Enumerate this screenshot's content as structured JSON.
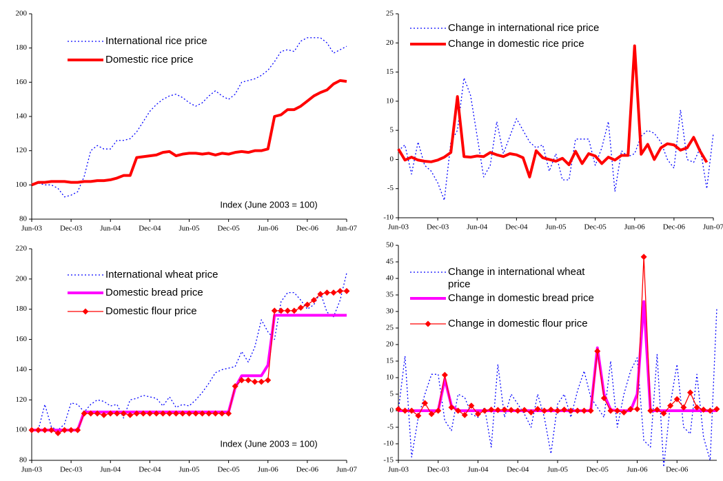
{
  "chart_data": [
    {
      "type": "line",
      "categories": [
        "Jun-03",
        null,
        null,
        null,
        null,
        null,
        "Dec-03",
        null,
        null,
        null,
        null,
        null,
        "Jun-04",
        null,
        null,
        null,
        null,
        null,
        "Dec-04",
        null,
        null,
        null,
        null,
        null,
        "Jun-05",
        null,
        null,
        null,
        null,
        null,
        "Dec-05",
        null,
        null,
        null,
        null,
        null,
        "Jun-06",
        null,
        null,
        null,
        null,
        null,
        "Dec-06",
        null,
        null,
        null,
        null,
        null,
        "Jun-07"
      ],
      "series": [
        {
          "name": "International rice price",
          "color": "#0000ff",
          "style": "dotted",
          "values": [
            100,
            101,
            100,
            100,
            98,
            93,
            94,
            96,
            105,
            120,
            123,
            121,
            121,
            126,
            126,
            127,
            131,
            137,
            143,
            147,
            150,
            152,
            153,
            151,
            148,
            146,
            148,
            152,
            155,
            152,
            150,
            153,
            160,
            161,
            162,
            164,
            167,
            172,
            178,
            179,
            178,
            184,
            186,
            186,
            186,
            183,
            177,
            179,
            181
          ]
        },
        {
          "name": "Domestic rice price",
          "color": "#ff0000",
          "style": "thick",
          "values": [
            100,
            101.5,
            101.5,
            102,
            102,
            102,
            101.5,
            101.5,
            102,
            102,
            102.5,
            102.5,
            103,
            104,
            105.5,
            105.5,
            116,
            116.5,
            117,
            117.5,
            119,
            119.5,
            117,
            118,
            118.5,
            118.5,
            118,
            118.5,
            117.5,
            118.5,
            118,
            119,
            119.5,
            119,
            120,
            120,
            121,
            140,
            141,
            144,
            144,
            146,
            149,
            152,
            154,
            155.5,
            159,
            161,
            160.5
          ]
        }
      ],
      "annotation": "Index (June 2003 = 100)",
      "ylim": [
        80,
        200
      ],
      "yticks": [
        80,
        100,
        120,
        140,
        160,
        180,
        200
      ]
    },
    {
      "type": "line",
      "categories": [
        "Jun-03",
        null,
        null,
        null,
        null,
        null,
        "Dec-03",
        null,
        null,
        null,
        null,
        null,
        "Jun-04",
        null,
        null,
        null,
        null,
        null,
        "Dec-04",
        null,
        null,
        null,
        null,
        null,
        "Jun-05",
        null,
        null,
        null,
        null,
        null,
        "Dec-05",
        null,
        null,
        null,
        null,
        null,
        "Jun-06",
        null,
        null,
        null,
        null,
        null,
        "Dec-06",
        null,
        null,
        null,
        null,
        null,
        "Jun-07"
      ],
      "series": [
        {
          "name": "Change in international rice price",
          "color": "#0000ff",
          "style": "dotted",
          "values": [
            1.5,
            2.5,
            -2.5,
            3,
            -1,
            -2,
            -4,
            -7,
            3,
            5,
            14,
            11,
            4,
            -3,
            -1,
            6.5,
            1,
            4,
            7,
            5,
            3,
            2,
            2.5,
            -2,
            1,
            -3.5,
            -3.5,
            3.5,
            3.5,
            3.5,
            -1,
            2,
            6.5,
            -5.5,
            1.5,
            0.5,
            1,
            4,
            5,
            4.5,
            3,
            0,
            -1.5,
            8.5,
            0,
            -0.5,
            2,
            -5,
            4.5
          ]
        },
        {
          "name": "Change in domestic rice price",
          "color": "#ff0000",
          "style": "thick",
          "values": [
            1.8,
            -0.1,
            0.4,
            -0.1,
            -0.3,
            -0.4,
            -0.1,
            0.4,
            1.2,
            10.8,
            0.5,
            0.4,
            0.6,
            0.5,
            1.2,
            0.8,
            0.5,
            1.0,
            0.8,
            0.3,
            -3,
            1.5,
            0.3,
            0,
            -0.3,
            0.2,
            -0.9,
            1.4,
            -0.7,
            1,
            0.6,
            -0.7,
            0.4,
            -0.1,
            0.7,
            0.7,
            19.5,
            0.9,
            2.6,
            0,
            2,
            2.7,
            2.5,
            1.6,
            2,
            3.8,
            1.4,
            -0.5,
            null
          ]
        }
      ],
      "ylim": [
        -10,
        25
      ],
      "yticks": [
        -10,
        -5,
        0,
        5,
        10,
        15,
        20,
        25
      ]
    },
    {
      "type": "line",
      "categories": [
        "Jun-03",
        null,
        null,
        null,
        null,
        null,
        "Dec-03",
        null,
        null,
        null,
        null,
        null,
        "Jun-04",
        null,
        null,
        null,
        null,
        null,
        "Dec-04",
        null,
        null,
        null,
        null,
        null,
        "Jun-05",
        null,
        null,
        null,
        null,
        null,
        "Dec-05",
        null,
        null,
        null,
        null,
        null,
        "Jun-06",
        null,
        null,
        null,
        null,
        null,
        "Dec-06",
        null,
        null,
        null,
        null,
        null,
        "Jun-07"
      ],
      "series": [
        {
          "name": "International wheat price",
          "color": "#0000ff",
          "style": "dotted",
          "values": [
            100,
            100,
            117,
            102,
            100,
            104,
            118,
            117,
            112,
            117,
            120,
            119,
            116,
            117,
            108,
            120,
            121,
            123,
            122,
            121,
            116,
            122,
            115,
            117,
            116,
            120,
            125,
            131,
            138,
            140,
            141,
            142,
            152,
            145,
            155,
            173,
            165,
            160,
            185,
            191,
            191,
            186,
            180,
            183,
            191,
            178,
            175,
            186,
            204
          ]
        },
        {
          "name": "Domestic bread price",
          "color": "#ff00ff",
          "style": "thick",
          "values": [
            100,
            100,
            100,
            100,
            100,
            100,
            100,
            100,
            112,
            112,
            112,
            112,
            112,
            112,
            112,
            112,
            112,
            112,
            112,
            112,
            112,
            112,
            112,
            112,
            112,
            112,
            112,
            112,
            112,
            112,
            112,
            128,
            136,
            136,
            136,
            136,
            143,
            176,
            176,
            176,
            176,
            176,
            176,
            176,
            176,
            176,
            176,
            176,
            176
          ]
        },
        {
          "name": "Domestic flour price",
          "color": "#ff0000",
          "style": "thin",
          "marker": "diamond",
          "values": [
            100,
            100,
            100,
            100,
            98,
            100,
            100,
            100,
            111,
            111,
            111,
            110,
            111,
            111,
            111,
            110,
            111,
            111,
            111,
            111,
            111,
            111,
            111,
            111,
            111,
            111,
            111,
            111,
            111,
            111,
            111,
            129,
            133,
            133,
            132,
            132,
            133,
            179,
            179,
            179,
            179,
            181,
            183,
            186,
            190,
            191,
            191,
            192,
            192
          ]
        }
      ],
      "annotation": "Index (June 2003 = 100)",
      "ylim": [
        80,
        220
      ],
      "yticks": [
        80,
        100,
        120,
        140,
        160,
        180,
        200,
        220
      ]
    },
    {
      "type": "line",
      "categories": [
        "Jun-03",
        null,
        null,
        null,
        null,
        null,
        "Dec-03",
        null,
        null,
        null,
        null,
        null,
        "Jun-04",
        null,
        null,
        null,
        null,
        null,
        "Dec-04",
        null,
        null,
        null,
        null,
        null,
        "Jun-05",
        null,
        null,
        null,
        null,
        null,
        "Dec-05",
        null,
        null,
        null,
        null,
        null,
        "Jun-06",
        null,
        null,
        null,
        null,
        null,
        "Dec-06",
        null,
        null,
        null,
        null,
        null,
        null
      ],
      "series": [
        {
          "name": "Change in international wheat price",
          "color": "#0000ff",
          "style": "dotted",
          "values": [
            0,
            16.5,
            -14,
            -2,
            5,
            11,
            11,
            -3,
            -6,
            5,
            4,
            -1,
            -2,
            1,
            -11,
            14,
            -2,
            5,
            2,
            -1,
            -5,
            5,
            -2,
            -13,
            2,
            5,
            -2,
            6,
            12,
            4,
            1,
            -2,
            15,
            -5,
            5,
            12,
            16,
            -9,
            -11,
            17,
            -17,
            2,
            14,
            -5,
            -7,
            11,
            -8,
            -15,
            31
          ]
        },
        {
          "name": "Change in domestic bread price",
          "color": "#ff00ff",
          "style": "thick",
          "values": [
            0,
            0,
            0,
            0,
            0,
            0,
            0,
            9.5,
            1.5,
            0,
            0,
            0,
            0,
            0,
            0,
            0,
            0,
            0,
            0,
            0,
            0,
            0,
            0,
            0,
            0,
            0,
            0,
            0,
            0,
            0,
            19,
            5,
            0.3,
            0,
            0,
            0,
            5,
            33,
            0,
            0,
            0,
            0,
            0,
            0,
            0,
            0,
            0,
            0,
            0
          ]
        },
        {
          "name": "Change in domestic flour price",
          "color": "#ff0000",
          "style": "thin",
          "marker": "diamond",
          "values": [
            0.5,
            0,
            0,
            -1.5,
            2.3,
            -1,
            0,
            10.8,
            1,
            0,
            -1.3,
            1.5,
            -1,
            0,
            0.3,
            0.2,
            0.3,
            0.2,
            0,
            0.2,
            -0.5,
            0.5,
            0,
            0.3,
            0,
            0.3,
            0,
            0,
            0,
            0,
            18,
            3.8,
            0,
            0,
            -0.5,
            0.5,
            0.5,
            46.5,
            0,
            0.3,
            -0.8,
            1.5,
            3.5,
            1,
            5.5,
            1,
            0.3,
            0,
            0.5
          ]
        }
      ],
      "ylim": [
        -15,
        50
      ],
      "yticks": [
        -15,
        -10,
        -5,
        0,
        5,
        10,
        15,
        20,
        25,
        30,
        35,
        40,
        45,
        50
      ]
    }
  ]
}
